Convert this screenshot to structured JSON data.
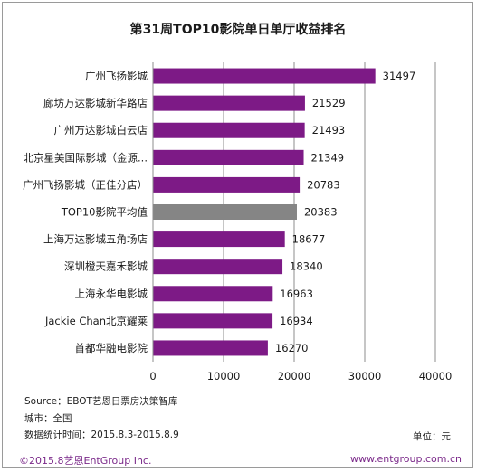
{
  "chart_data": {
    "type": "bar",
    "orientation": "horizontal",
    "title": "第31周TOP10影院单日单厅收益排名",
    "categories": [
      "广州飞扬影城",
      "廊坊万达影城新华路店",
      "广州万达影城白云店",
      "北京星美国际影城（金源...",
      "广州飞扬影城（正佳分店）",
      "TOP10影院平均值",
      "上海万达影城五角场店",
      "深圳橙天嘉禾影城",
      "上海永华电影城",
      "Jackie Chan北京耀莱",
      "首都华融电影院"
    ],
    "values": [
      31497,
      21529,
      21493,
      21349,
      20783,
      20383,
      18677,
      18340,
      16963,
      16934,
      16270
    ],
    "highlight_index": 5,
    "xlim": [
      0,
      40000
    ],
    "xticks": [
      "0",
      "10000",
      "20000",
      "30000",
      "40000"
    ],
    "grid": true,
    "colors": {
      "bar": "#7d1a86",
      "highlight": "#858585"
    }
  },
  "footer": {
    "source": "Source：EBOT艺恩日票房决策智库",
    "city": "城市：全国",
    "period": "数据统计时间：2015.8.3-2015.8.9",
    "unit": "单位：元",
    "copyright": "©2015.8艺恩EntGroup Inc.",
    "website": "www.entgroup.com.cn"
  }
}
